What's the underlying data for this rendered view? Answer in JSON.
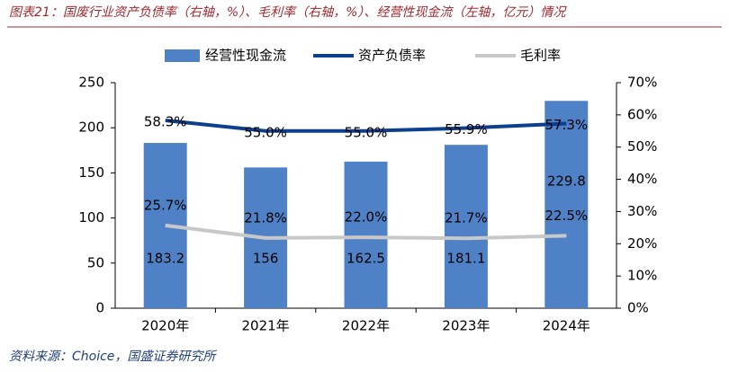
{
  "chart_data": {
    "type": "bar-line",
    "title": "图表21：国废行业资产负债率（右轴，%）、毛利率（右轴，%）、经营性现金流（左轴，亿元）情况",
    "source": "资料来源：Choice，国盛证券研究所",
    "categories": [
      "2020年",
      "2021年",
      "2022年",
      "2023年",
      "2024年"
    ],
    "series": [
      {
        "name": "经营性现金流",
        "type": "bar",
        "color": "#4f81c7",
        "values": [
          183.2,
          156.0,
          162.5,
          181.1,
          229.8
        ]
      },
      {
        "name": "资产负债率",
        "type": "line",
        "axis": "y2",
        "color": "#0d3f8f",
        "values": [
          58.3,
          55.0,
          55.0,
          55.9,
          57.3
        ],
        "value_labels": [
          "58.3%",
          "55.0%",
          "55.0%",
          "55.9%",
          "57.3%"
        ]
      },
      {
        "name": "毛利率",
        "type": "line",
        "axis": "y2",
        "color": "#c8c8c8",
        "values": [
          25.7,
          21.8,
          22.0,
          21.7,
          22.5
        ],
        "value_labels": [
          "25.7%",
          "21.8%",
          "22.0%",
          "21.7%",
          "22.5%"
        ]
      }
    ],
    "ylim": [
      0,
      250
    ],
    "yticks": [
      0,
      50,
      100,
      150,
      200,
      250
    ],
    "y2lim": [
      0,
      70
    ],
    "y2ticks": [
      {
        "value": 0,
        "label": "0%"
      },
      {
        "value": 10,
        "label": "10%"
      },
      {
        "value": 20,
        "label": "20%"
      },
      {
        "value": 30,
        "label": "30%"
      },
      {
        "value": 40,
        "label": "40%"
      },
      {
        "value": 50,
        "label": "50%"
      },
      {
        "value": 60,
        "label": "60%"
      },
      {
        "value": 70,
        "label": "70%"
      }
    ],
    "legend": "top"
  }
}
